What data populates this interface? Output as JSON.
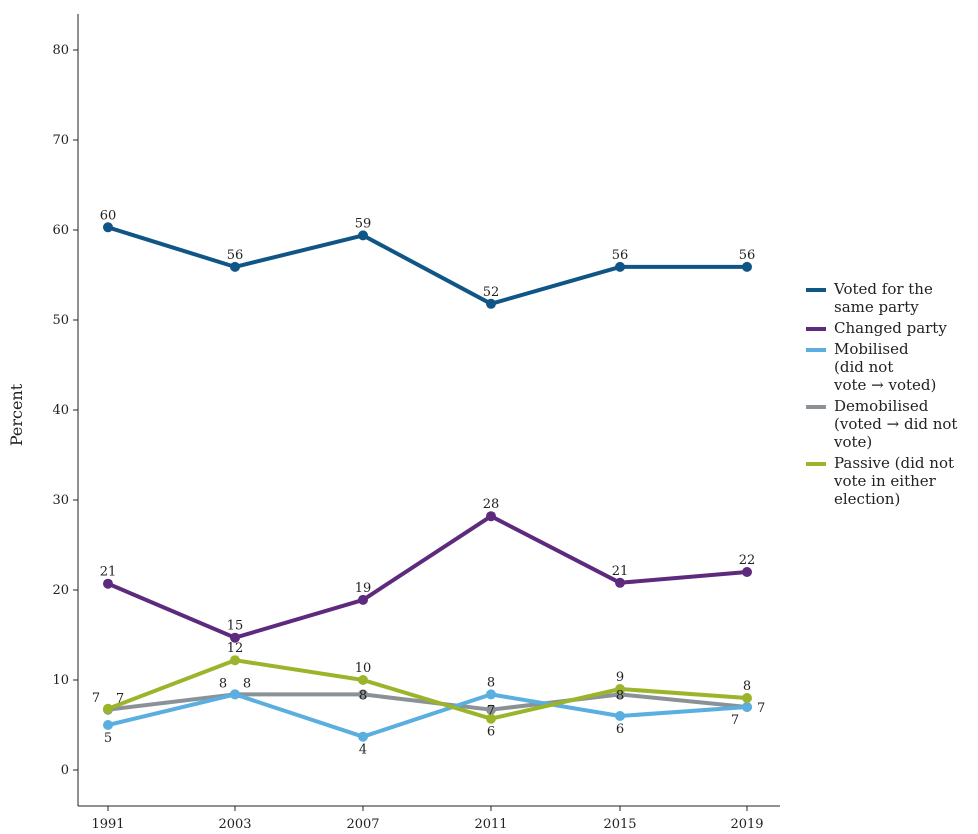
{
  "chart_data": {
    "type": "line",
    "categories": [
      "1991",
      "2003",
      "2007",
      "2011",
      "2015",
      "2019"
    ],
    "ylabel": "Percent",
    "ylim": [
      0,
      80
    ],
    "yticks": [
      "0",
      "10",
      "20",
      "30",
      "40",
      "50",
      "60",
      "70",
      "80"
    ],
    "grid": false,
    "legend_position": "right",
    "series": [
      {
        "name": "Voted for the same party",
        "legend_lines": [
          "Voted for the",
          "same party"
        ],
        "color": "#0f5585",
        "values": [
          60.3,
          55.9,
          59.4,
          51.8,
          55.9,
          55.9
        ],
        "labels": [
          "60",
          "56",
          "59",
          "52",
          "56",
          "56"
        ],
        "label_pos": [
          "above",
          "above",
          "above",
          "above",
          "above",
          "above"
        ]
      },
      {
        "name": "Changed party",
        "legend_lines": [
          "Changed party"
        ],
        "color": "#5d2a7e",
        "values": [
          20.7,
          14.7,
          18.9,
          28.2,
          20.8,
          22.0
        ],
        "labels": [
          "21",
          "15",
          "19",
          "28",
          "21",
          "22"
        ],
        "label_pos": [
          "above",
          "above",
          "above",
          "above",
          "above",
          "above"
        ]
      },
      {
        "name": "Mobilised (did not vote → voted)",
        "legend_lines": [
          "Mobilised",
          "(did not",
          "vote → voted)"
        ],
        "color": "#5aaee0",
        "values": [
          5.0,
          8.4,
          3.7,
          8.4,
          6.0,
          7.0
        ],
        "labels": [
          "5",
          "8",
          "4",
          "8",
          "6",
          "7"
        ],
        "label_pos": [
          "below",
          "above-left",
          "below",
          "above",
          "below",
          "below-left"
        ]
      },
      {
        "name": "Demobilised (voted → did not vote)",
        "legend_lines": [
          "Demobilised",
          "(voted → did not",
          "vote)"
        ],
        "color": "#8a9197",
        "values": [
          6.7,
          8.4,
          8.4,
          6.7,
          8.4,
          7.0
        ],
        "labels": [
          "7",
          "8",
          "8",
          "7",
          "8",
          "7"
        ],
        "label_pos": [
          "above-right",
          "above-right",
          "center",
          "center",
          "center",
          "right"
        ]
      },
      {
        "name": "Passive (did not vote in either election)",
        "legend_lines": [
          "Passive (did not",
          "vote in either",
          "election)"
        ],
        "color": "#9bb52b",
        "values": [
          6.8,
          12.2,
          10.0,
          5.7,
          9.0,
          8.0
        ],
        "labels": [
          "7",
          "12",
          "10",
          "6",
          "9",
          "8"
        ],
        "label_pos": [
          "above-left",
          "above",
          "above",
          "below",
          "above",
          "above"
        ]
      }
    ]
  }
}
